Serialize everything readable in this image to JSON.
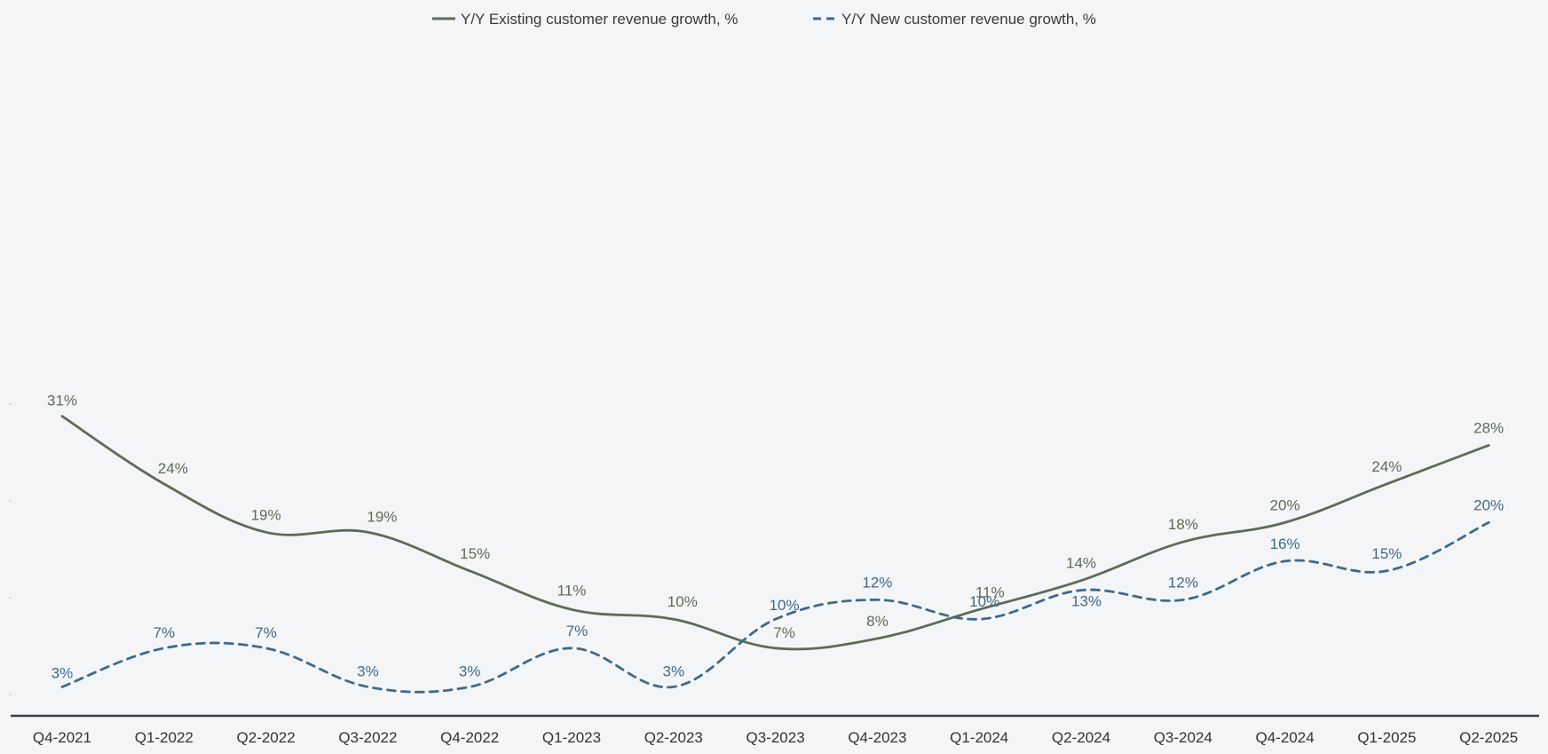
{
  "chart_data": {
    "type": "line",
    "categories": [
      "Q4-2021",
      "Q1-2022",
      "Q2-2022",
      "Q3-2022",
      "Q4-2022",
      "Q1-2023",
      "Q2-2023",
      "Q3-2023",
      "Q4-2023",
      "Q1-2024",
      "Q2-2024",
      "Q3-2024",
      "Q4-2024",
      "Q1-2025",
      "Q2-2025"
    ],
    "series": [
      {
        "name": "Y/Y Existing customer revenue growth, %",
        "values": [
          31,
          24,
          19,
          19,
          15,
          11,
          10,
          7,
          8,
          11,
          14,
          18,
          20,
          24,
          28
        ],
        "labels": [
          "31%",
          "24%",
          "19%",
          "19%",
          "15%",
          "11%",
          "10%",
          "7%",
          "8%",
          "11%",
          "14%",
          "18%",
          "20%",
          "24%",
          "28%"
        ],
        "color": "#5f6b57",
        "line_style": "solid"
      },
      {
        "name": "Y/Y New customer revenue growth, %",
        "values": [
          3,
          7,
          7,
          3,
          3,
          7,
          3,
          10,
          12,
          10,
          13,
          12,
          16,
          15,
          20
        ],
        "labels": [
          "3%",
          "7%",
          "7%",
          "3%",
          "3%",
          "7%",
          "3%",
          "10%",
          "12%",
          "10%",
          "13%",
          "12%",
          "16%",
          "15%",
          "20%"
        ],
        "color": "#3f6a8a",
        "line_style": "dashed"
      }
    ],
    "ylim": [
      0,
      35
    ],
    "grid": false,
    "legend_position": "top-center"
  }
}
